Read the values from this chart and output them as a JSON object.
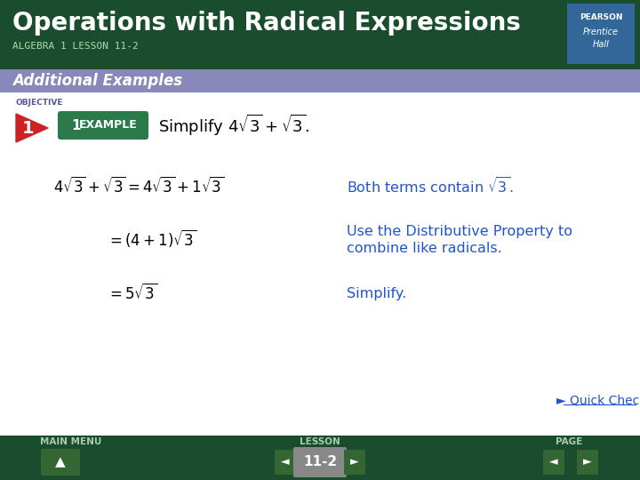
{
  "title": "Operations with Radical Expressions",
  "subtitle": "ALGEBRA 1 LESSON 11-2",
  "section_label": "Additional Examples",
  "header_bg": "#1a4d2e",
  "section_bg": "#8888bb",
  "body_bg": "#ffffff",
  "footer_bg": "#1a4d2e",
  "title_color": "#ffffff",
  "subtitle_color": "#aaddaa",
  "section_color": "#ffffff",
  "math_color": "#000000",
  "blue_color": "#2255cc",
  "objective_label": "OBJECTIVE",
  "objective_num": "1",
  "example_label": "EXAMPLE",
  "example_num": "1",
  "simplify_text": "Simplify $4\\sqrt{3} + \\sqrt{3}$.",
  "step1_left": "$4\\sqrt{3} + \\sqrt{3} = 4\\sqrt{3} + 1\\sqrt{3}$",
  "step1_right": "Both terms contain $\\sqrt{3}$.",
  "step2_left": "$= (4 + 1)\\sqrt{3}$",
  "step2_right_line1": "Use the Distributive Property to",
  "step2_right_line2": "combine like radicals.",
  "step3_left": "$= 5\\sqrt{3}$",
  "step3_right": "Simplify.",
  "footer_labels": [
    "MAIN MENU",
    "LESSON",
    "PAGE"
  ],
  "lesson_num": "11-2",
  "quick_check": "Quick Check",
  "logo_bg": "#336699",
  "logo_text1": "PEARSON",
  "logo_text2": "Prentice",
  "logo_text3": "Hall"
}
